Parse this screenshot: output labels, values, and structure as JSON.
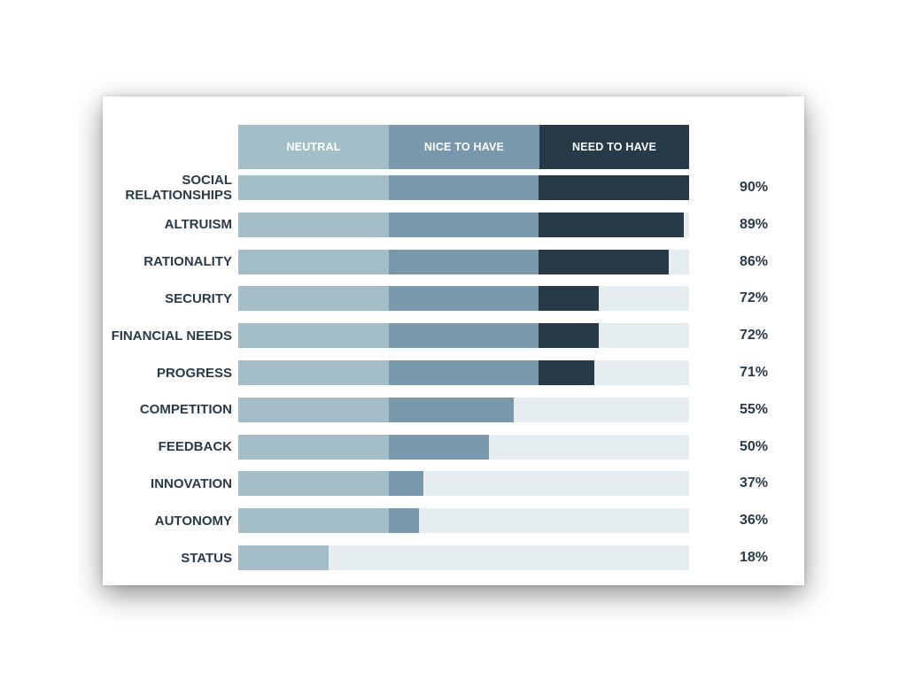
{
  "chart_data": {
    "type": "bar",
    "stacked": true,
    "orientation": "horizontal",
    "legend": [
      "NEUTRAL",
      "NICE TO HAVE",
      "NEED TO HAVE"
    ],
    "colors": {
      "neutral": "#a4bec7",
      "nice": "#7a98ab",
      "need": "#263a48",
      "track": "#e6edf0"
    },
    "scale_max": 90,
    "rows": [
      {
        "label": "SOCIAL\nRELATIONSHIPS",
        "value": 90,
        "pct": "90%"
      },
      {
        "label": "ALTRUISM",
        "value": 89,
        "pct": "89%"
      },
      {
        "label": "RATIONALITY",
        "value": 86,
        "pct": "86%"
      },
      {
        "label": "SECURITY",
        "value": 72,
        "pct": "72%"
      },
      {
        "label": "FINANCIAL NEEDS",
        "value": 72,
        "pct": "72%"
      },
      {
        "label": "PROGRESS",
        "value": 71,
        "pct": "71%"
      },
      {
        "label": "COMPETITION",
        "value": 55,
        "pct": "55%"
      },
      {
        "label": "FEEDBACK",
        "value": 50,
        "pct": "50%"
      },
      {
        "label": "INNOVATION",
        "value": 37,
        "pct": "37%"
      },
      {
        "label": "AUTONOMY",
        "value": 36,
        "pct": "36%"
      },
      {
        "label": "STATUS",
        "value": 18,
        "pct": "18%"
      }
    ]
  }
}
